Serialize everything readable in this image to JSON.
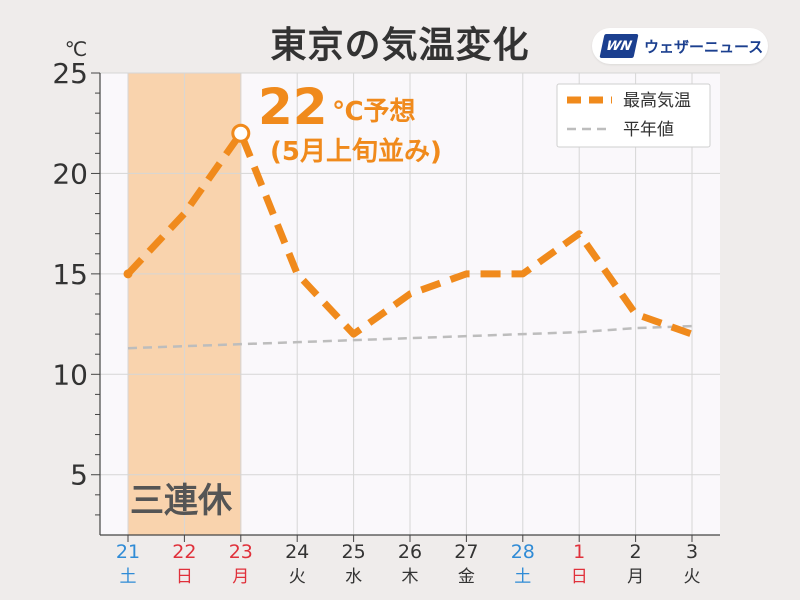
{
  "header": {
    "title": "東京の気温変化",
    "brand_logo": "WN",
    "brand_name": "ウェザーニュース"
  },
  "annotation": {
    "forecast_value": "22",
    "forecast_unit": "℃予想",
    "forecast_note": "(5月上旬並み)",
    "holiday_label": "三連休"
  },
  "chart_data": {
    "type": "line",
    "ylabel": "℃",
    "ylim": [
      2,
      25
    ],
    "yticks": [
      5,
      10,
      15,
      20,
      25
    ],
    "categories": [
      "21",
      "22",
      "23",
      "24",
      "25",
      "26",
      "27",
      "28",
      "1",
      "2",
      "3"
    ],
    "weekdays": [
      "土",
      "日",
      "月",
      "火",
      "水",
      "木",
      "金",
      "土",
      "日",
      "月",
      "火"
    ],
    "date_colors": [
      "#2f8bd6",
      "#e0313b",
      "#e0313b",
      "#333333",
      "#333333",
      "#333333",
      "#333333",
      "#2f8bd6",
      "#e0313b",
      "#333333",
      "#333333"
    ],
    "highlight_range": [
      0,
      2
    ],
    "highlight_point": 2,
    "grid": true,
    "legend_position": "top-right",
    "series": [
      {
        "name": "最高気温",
        "values": [
          15,
          18,
          22,
          15,
          12,
          14,
          15,
          15,
          17,
          13,
          12
        ],
        "color": "#f08a1c",
        "style": "dashed-thick"
      },
      {
        "name": "平年値",
        "values": [
          11.3,
          11.4,
          11.5,
          11.6,
          11.7,
          11.8,
          11.9,
          12.0,
          12.1,
          12.3,
          12.4
        ],
        "color": "#bdbdbd",
        "style": "dashed-thin"
      }
    ]
  },
  "colors": {
    "accent": "#f08a1c",
    "highlight_fill": "#f9d3ad",
    "plot_bg": "#faf8fb",
    "grid": "#d6d6d6"
  }
}
